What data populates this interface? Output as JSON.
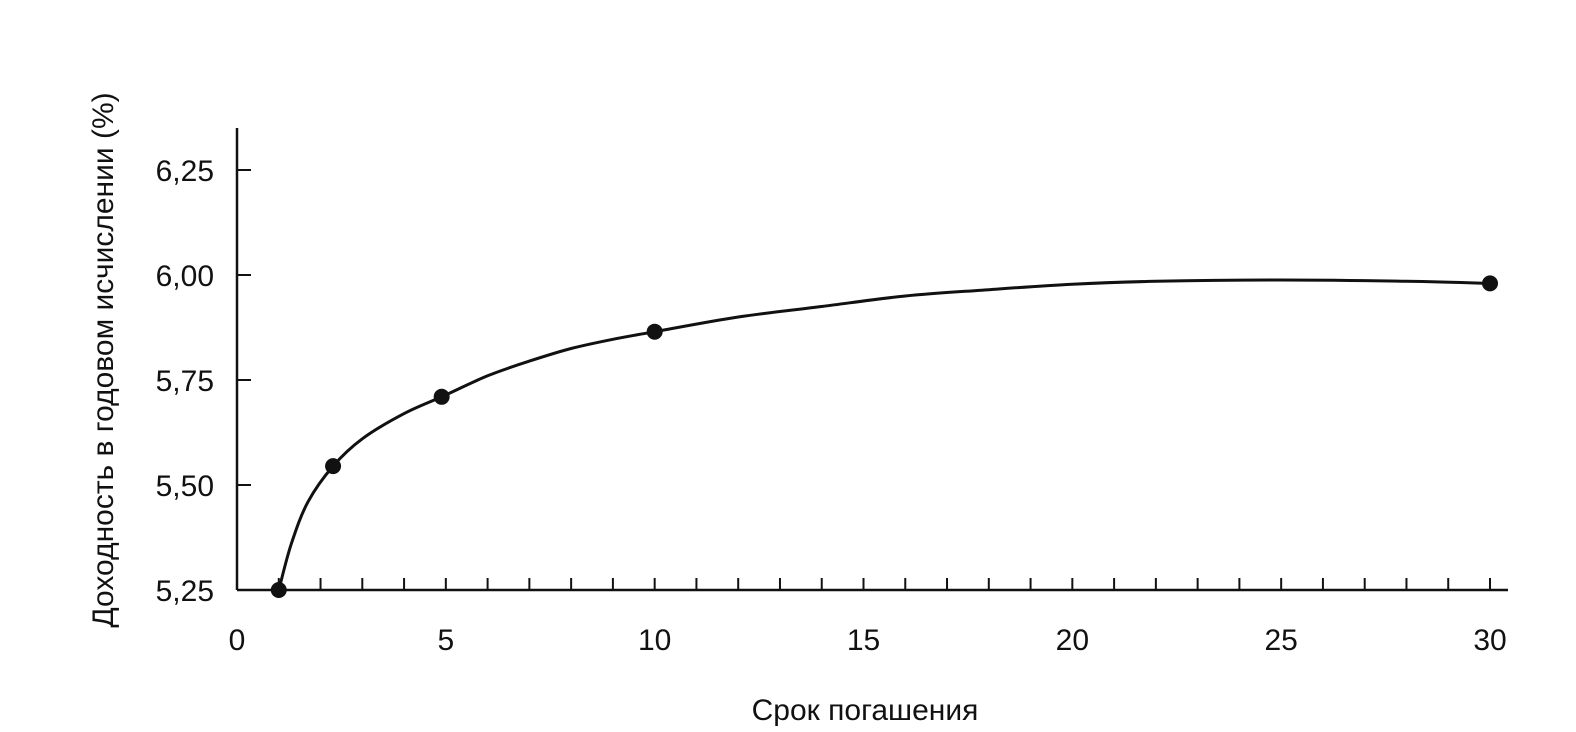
{
  "chart_data": {
    "type": "line",
    "title": "",
    "xlabel": "Срок погашения",
    "ylabel": "Доходность в годовом исчислении (%)",
    "xlim": [
      0,
      30
    ],
    "ylim": [
      5.25,
      6.35
    ],
    "x_ticks": [
      0,
      5,
      10,
      15,
      20,
      25,
      30
    ],
    "x_tick_labels": [
      "0",
      "5",
      "10",
      "15",
      "20",
      "25",
      "30"
    ],
    "y_ticks": [
      5.25,
      5.5,
      5.75,
      6.0,
      6.25
    ],
    "y_tick_labels": [
      "5,25",
      "5,50",
      "5,75",
      "6,00",
      "6,25"
    ],
    "minor_x_tick_step": 1,
    "grid": false,
    "legend": "none",
    "series": [
      {
        "points": [
          {
            "x": 1,
            "y": 5.25
          },
          {
            "x": 2.3,
            "y": 5.545
          },
          {
            "x": 4.9,
            "y": 5.71
          },
          {
            "x": 10,
            "y": 5.865
          },
          {
            "x": 30,
            "y": 5.98
          }
        ],
        "curve": [
          [
            1,
            5.25
          ],
          [
            1.3,
            5.36
          ],
          [
            1.7,
            5.46
          ],
          [
            2.3,
            5.545
          ],
          [
            3,
            5.61
          ],
          [
            4,
            5.67
          ],
          [
            4.9,
            5.71
          ],
          [
            6,
            5.76
          ],
          [
            7,
            5.795
          ],
          [
            8,
            5.825
          ],
          [
            9,
            5.847
          ],
          [
            10,
            5.865
          ],
          [
            12,
            5.9
          ],
          [
            14,
            5.925
          ],
          [
            16,
            5.95
          ],
          [
            18,
            5.965
          ],
          [
            20,
            5.978
          ],
          [
            22,
            5.985
          ],
          [
            25,
            5.988
          ],
          [
            28,
            5.985
          ],
          [
            30,
            5.98
          ]
        ]
      }
    ]
  }
}
